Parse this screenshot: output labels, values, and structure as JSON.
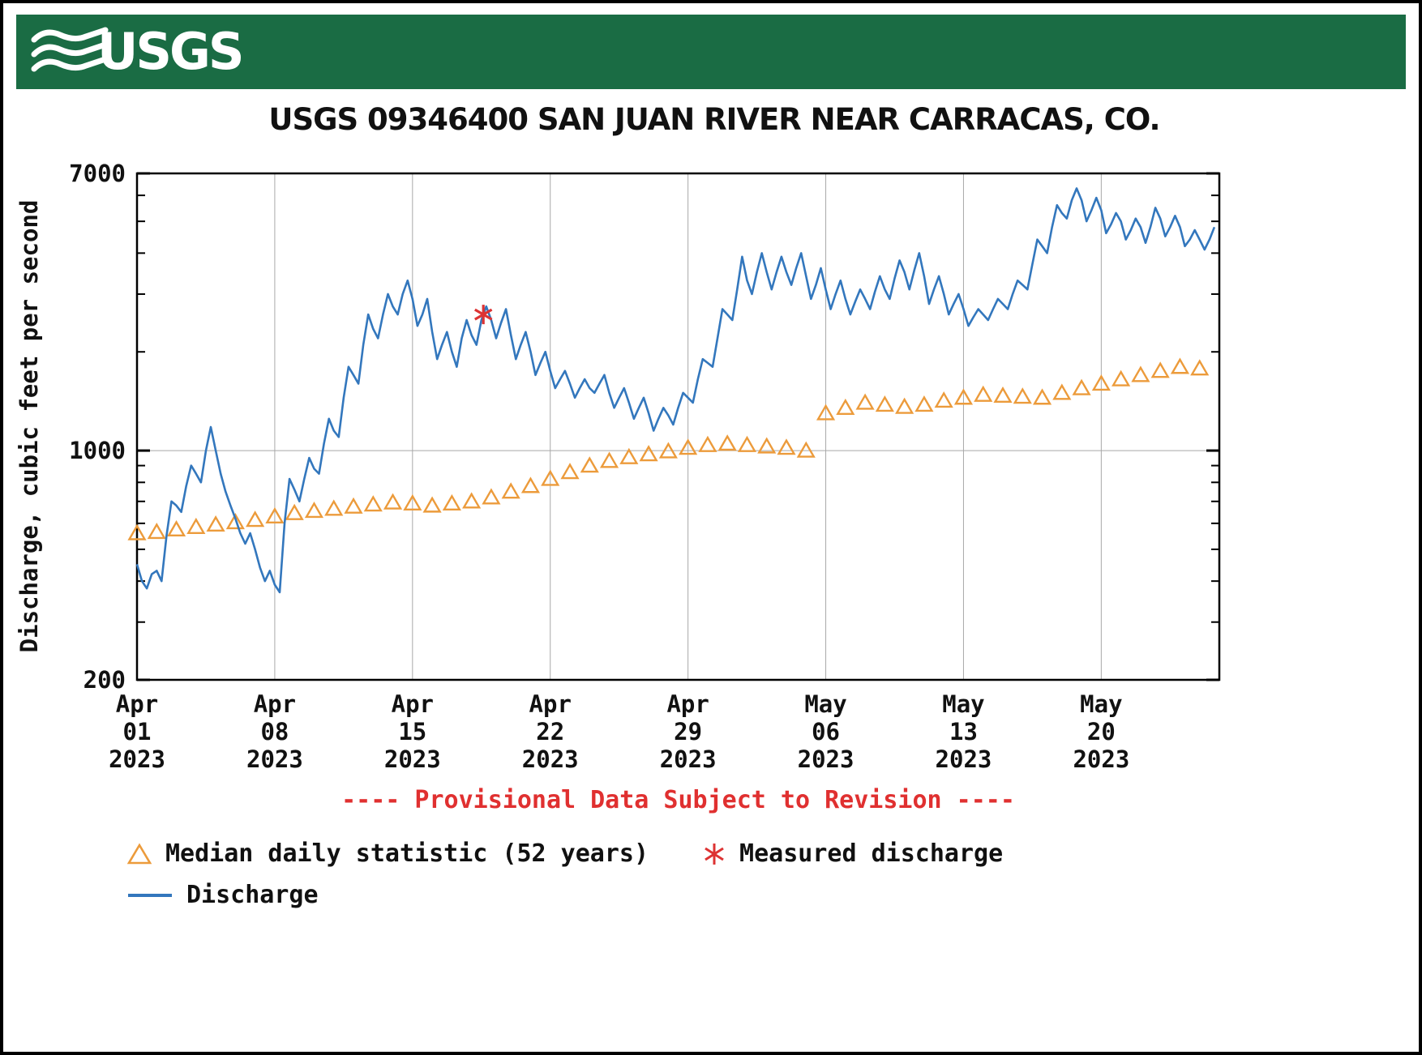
{
  "banner": {
    "logo_text": "USGS",
    "color": "#1a6c44"
  },
  "title": "USGS 09346400 SAN JUAN RIVER NEAR CARRACAS, CO.",
  "provisional_notice": "---- Provisional Data Subject to Revision ----",
  "legend": {
    "median_label": "Median daily statistic (52 years)",
    "measured_label": "Measured discharge",
    "discharge_label": "Discharge"
  },
  "chart_data": {
    "type": "line",
    "title": "USGS 09346400 SAN JUAN RIVER NEAR CARRACAS, CO.",
    "xlabel": "",
    "ylabel": "Discharge, cubic feet per second",
    "y_scale": "log",
    "ylim": [
      200,
      7000
    ],
    "y_major_ticks": [
      200,
      1000,
      7000
    ],
    "y_minor_ticks": [
      300,
      400,
      500,
      600,
      700,
      800,
      900,
      2000,
      3000,
      4000,
      5000,
      6000
    ],
    "x_domain_days": 55,
    "x_tick_days": [
      0,
      7,
      14,
      21,
      28,
      35,
      42,
      49
    ],
    "x_tick_labels": [
      [
        "Apr",
        "01",
        "2023"
      ],
      [
        "Apr",
        "08",
        "2023"
      ],
      [
        "Apr",
        "15",
        "2023"
      ],
      [
        "Apr",
        "22",
        "2023"
      ],
      [
        "Apr",
        "29",
        "2023"
      ],
      [
        "May",
        "06",
        "2023"
      ],
      [
        "May",
        "13",
        "2023"
      ],
      [
        "May",
        "20",
        "2023"
      ]
    ],
    "grid": {
      "vertical_weekly": true,
      "horizontal_at": [
        1000
      ]
    },
    "legend_position": "bottom-left",
    "series": [
      {
        "name": "Discharge",
        "type": "line",
        "color": "#3377bd",
        "units": "cubic feet per second",
        "interval_days": 0.25,
        "start_day": 0,
        "values": [
          450,
          400,
          380,
          420,
          430,
          400,
          550,
          700,
          680,
          650,
          780,
          900,
          850,
          800,
          1000,
          1180,
          1000,
          850,
          750,
          680,
          620,
          560,
          520,
          560,
          500,
          440,
          400,
          430,
          390,
          370,
          600,
          820,
          760,
          700,
          820,
          950,
          880,
          850,
          1050,
          1250,
          1150,
          1100,
          1450,
          1800,
          1700,
          1600,
          2100,
          2600,
          2350,
          2200,
          2600,
          3000,
          2750,
          2600,
          3000,
          3300,
          2900,
          2400,
          2600,
          2900,
          2300,
          1900,
          2100,
          2300,
          2000,
          1800,
          2200,
          2500,
          2250,
          2100,
          2500,
          2750,
          2500,
          2200,
          2450,
          2700,
          2250,
          1900,
          2100,
          2300,
          2000,
          1700,
          1850,
          2000,
          1750,
          1550,
          1650,
          1750,
          1600,
          1450,
          1550,
          1650,
          1550,
          1500,
          1600,
          1700,
          1500,
          1350,
          1450,
          1550,
          1400,
          1250,
          1350,
          1450,
          1300,
          1150,
          1250,
          1350,
          1280,
          1200,
          1350,
          1500,
          1450,
          1400,
          1650,
          1900,
          1850,
          1800,
          2200,
          2700,
          2600,
          2500,
          3100,
          3900,
          3300,
          3000,
          3500,
          4000,
          3500,
          3100,
          3500,
          3900,
          3500,
          3200,
          3600,
          4000,
          3400,
          2900,
          3200,
          3600,
          3100,
          2700,
          3000,
          3300,
          2900,
          2600,
          2850,
          3100,
          2900,
          2700,
          3050,
          3400,
          3100,
          2900,
          3350,
          3800,
          3500,
          3100,
          3550,
          4000,
          3400,
          2800,
          3100,
          3400,
          3000,
          2600,
          2800,
          3000,
          2700,
          2400,
          2550,
          2700,
          2600,
          2500,
          2700,
          2900,
          2800,
          2700,
          3000,
          3300,
          3200,
          3100,
          3700,
          4400,
          4200,
          4000,
          4800,
          5600,
          5300,
          5100,
          5800,
          6300,
          5800,
          5000,
          5400,
          5900,
          5400,
          4600,
          4900,
          5300,
          5000,
          4400,
          4700,
          5100,
          4800,
          4300,
          4800,
          5500,
          5100,
          4500,
          4800,
          5200,
          4800,
          4200,
          4400,
          4700,
          4400,
          4100,
          4400,
          4800
        ]
      },
      {
        "name": "Median daily statistic (52 years)",
        "type": "triangles",
        "color": "#ec9b3b",
        "units": "cubic feet per second",
        "interval_days": 1,
        "start_day": 0,
        "values": [
          560,
          565,
          575,
          585,
          595,
          605,
          615,
          630,
          645,
          655,
          665,
          675,
          685,
          695,
          690,
          680,
          690,
          700,
          720,
          750,
          780,
          820,
          860,
          900,
          930,
          955,
          975,
          995,
          1020,
          1040,
          1050,
          1040,
          1030,
          1020,
          1000,
          1300,
          1350,
          1400,
          1380,
          1360,
          1380,
          1420,
          1450,
          1480,
          1470,
          1460,
          1450,
          1500,
          1550,
          1600,
          1650,
          1700,
          1750,
          1800,
          1780
        ]
      },
      {
        "name": "Measured discharge",
        "type": "asterisk",
        "color": "#dd3333",
        "points": [
          {
            "day": 17.6,
            "value": 2600
          }
        ]
      }
    ]
  }
}
